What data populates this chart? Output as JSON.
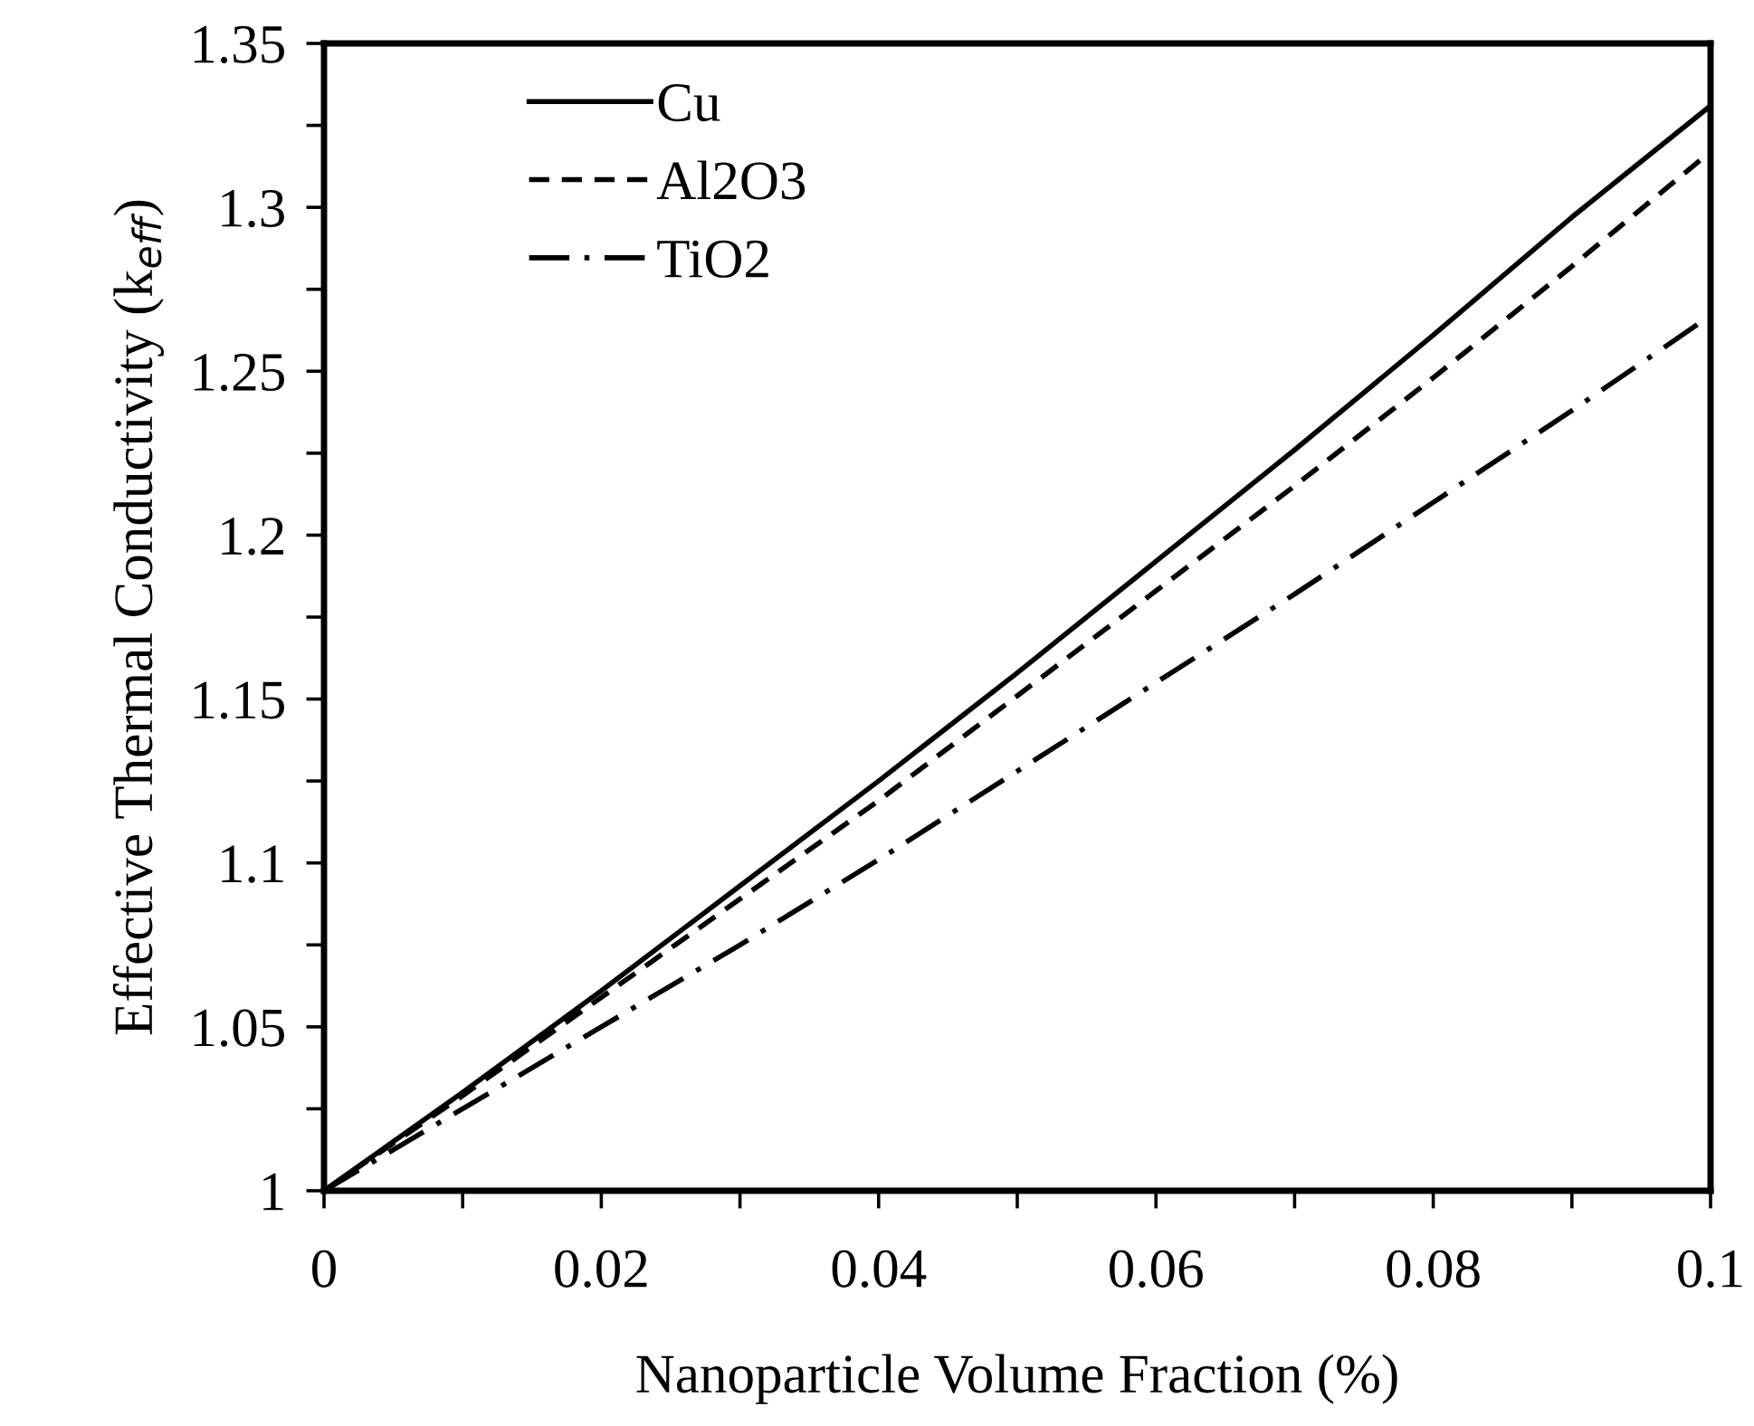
{
  "chart_data": {
    "type": "line",
    "xlabel": "Nanoparticle Volume Fraction (%)",
    "ylabel": "Effective Thermal Conductivity (k$_{eff}$)",
    "x": [
      0,
      0.01,
      0.02,
      0.03,
      0.04,
      0.05,
      0.06,
      0.07,
      0.08,
      0.09,
      0.1
    ],
    "series": [
      {
        "name": "Cu",
        "color": "#000000",
        "line_style": "solid",
        "values": [
          1,
          1.03,
          1.061,
          1.093,
          1.125,
          1.158,
          1.192,
          1.226,
          1.261,
          1.297,
          1.331
        ]
      },
      {
        "name": "Al2O3",
        "color": "#000000",
        "line_style": "dashed",
        "values": [
          1,
          1.029,
          1.059,
          1.089,
          1.119,
          1.151,
          1.183,
          1.215,
          1.248,
          1.282,
          1.317
        ]
      },
      {
        "name": "TiO2",
        "color": "#000000",
        "line_style": "dashdot",
        "values": [
          1,
          1.025,
          1.05,
          1.075,
          1.101,
          1.128,
          1.155,
          1.182,
          1.21,
          1.238,
          1.267
        ]
      }
    ],
    "xlim": [
      0,
      0.1
    ],
    "xticks": [
      0,
      {
        "value": 0.01,
        "label": null
      },
      0.02,
      {
        "value": 0.03,
        "label": null
      },
      0.04,
      {
        "value": 0.05,
        "label": null
      },
      0.06,
      {
        "value": 0.07,
        "label": null
      },
      0.08,
      {
        "value": 0.09,
        "label": null
      },
      0.1
    ],
    "ylim": [
      1,
      1.35
    ],
    "yticks": [
      1,
      {
        "value": 1.025,
        "label": null
      },
      1.05,
      {
        "value": 1.075,
        "label": null
      },
      1.1,
      {
        "value": 1.125,
        "label": null
      },
      1.15,
      {
        "value": 1.175,
        "label": null
      },
      1.2,
      {
        "value": 1.225,
        "label": null
      },
      1.25,
      {
        "value": 1.275,
        "label": null
      },
      1.3,
      {
        "value": 1.325,
        "label": null
      },
      1.35
    ],
    "grid": false,
    "legend": "top left",
    "marker": "none"
  }
}
